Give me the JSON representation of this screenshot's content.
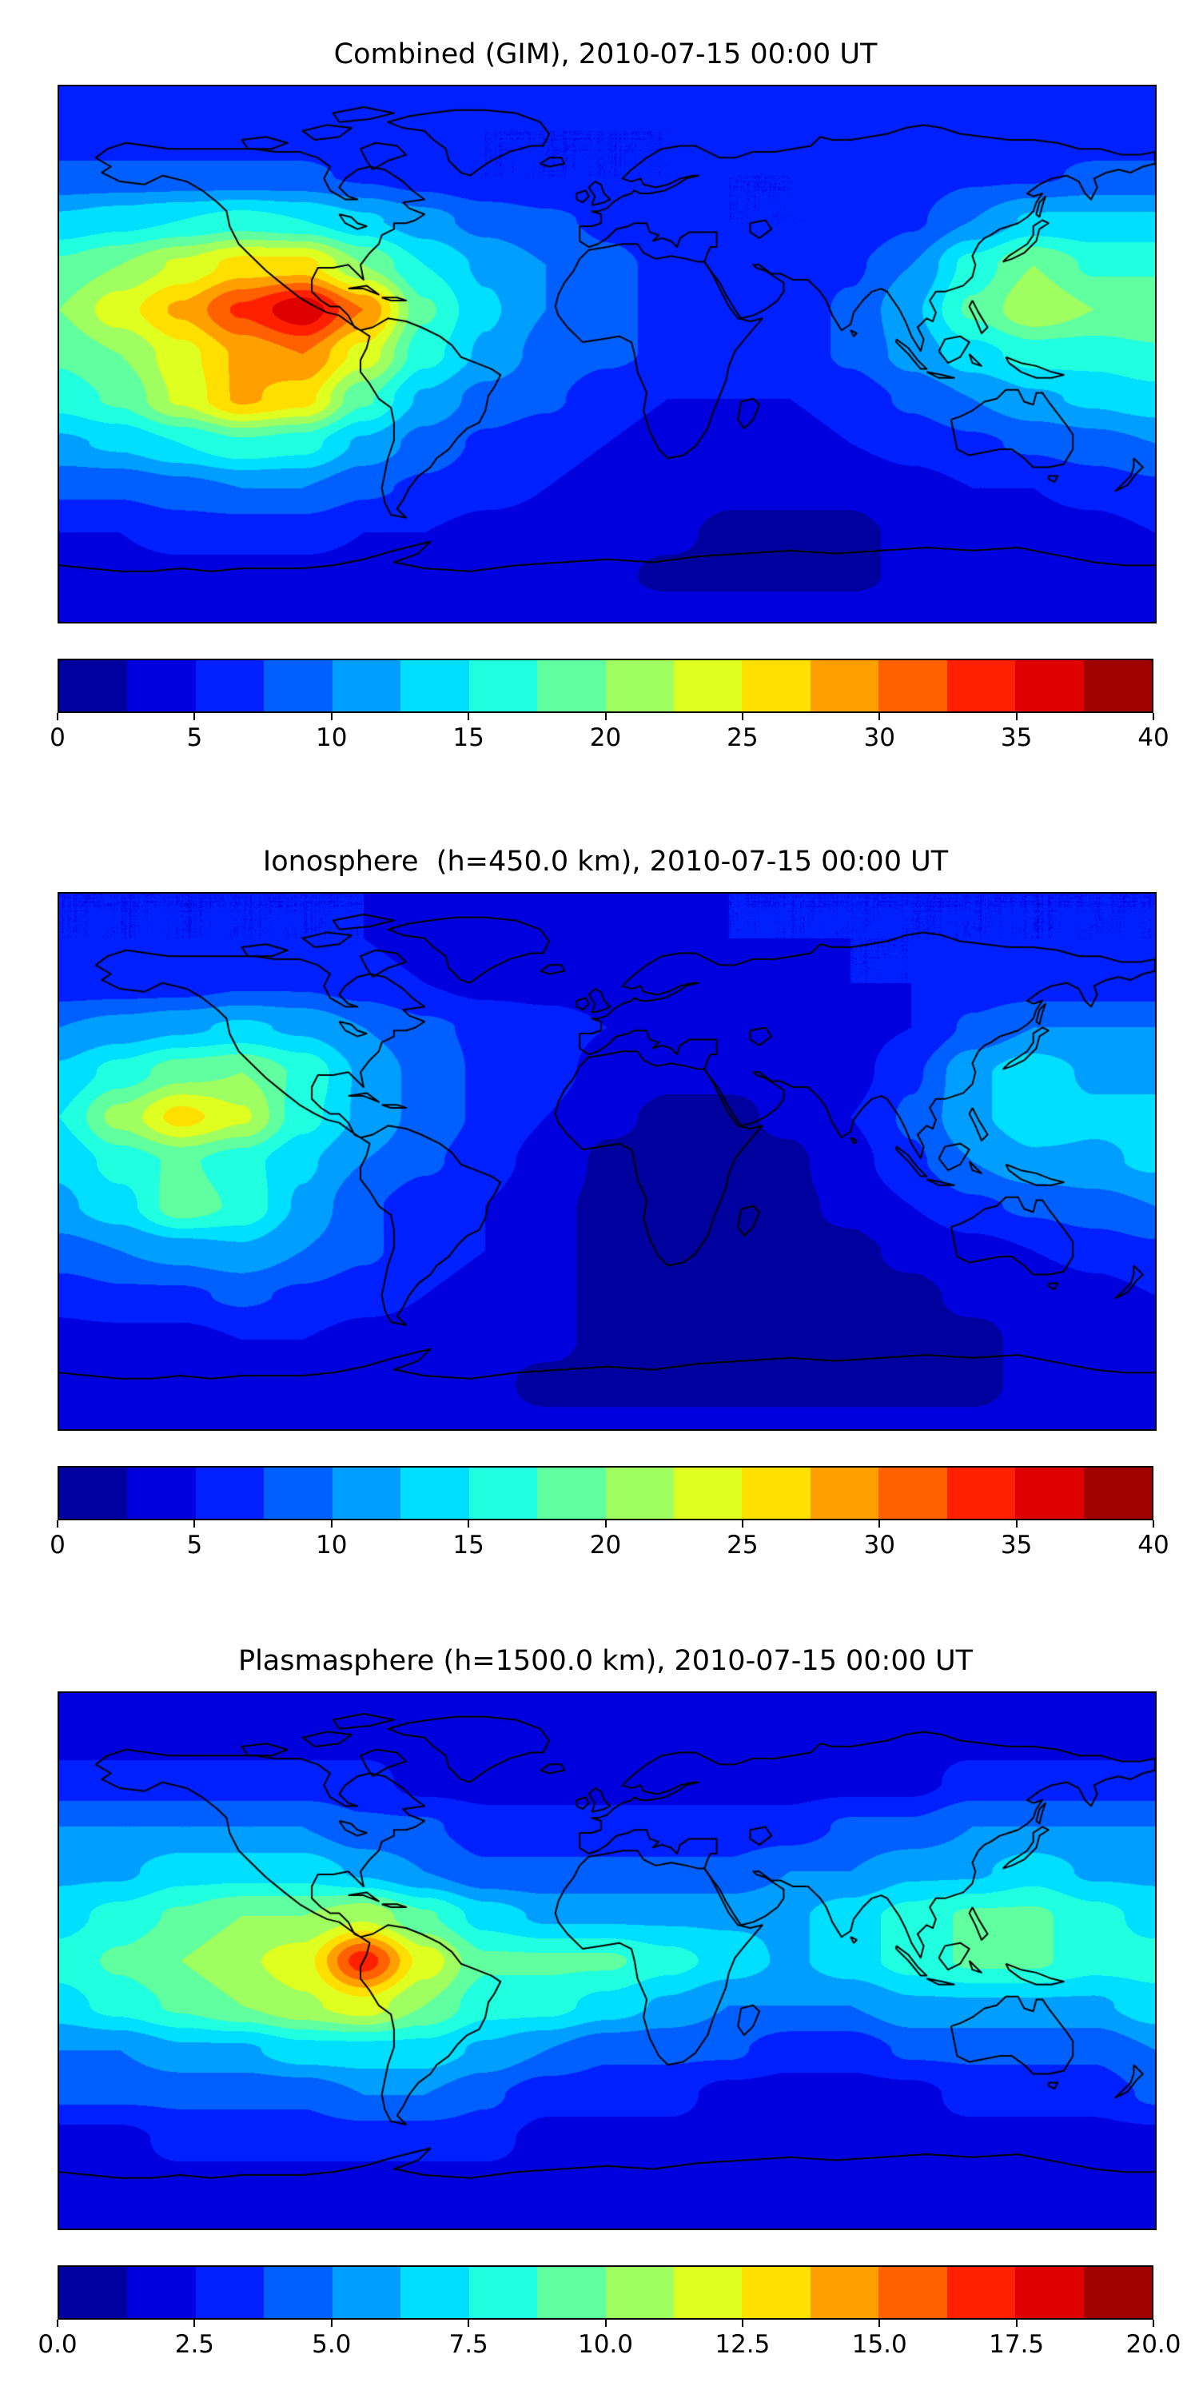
{
  "chart_data": [
    {
      "type": "heatmap",
      "title": "Combined (GIM), 2010-07-15 00:00 UT",
      "projection": "equirectangular world map with coastlines",
      "colormap": "jet",
      "colorbar": {
        "min": 0,
        "max": 40,
        "bands": 16,
        "ticks": [
          "0",
          "5",
          "10",
          "15",
          "20",
          "25",
          "30",
          "35",
          "40"
        ]
      },
      "grid": {
        "lons": [
          -180,
          -160,
          -140,
          -120,
          -100,
          -80,
          -60,
          -40,
          -20,
          0,
          20,
          40,
          60,
          80,
          100,
          120,
          140,
          160,
          180
        ],
        "lats": [
          90,
          75,
          60,
          45,
          30,
          15,
          0,
          -15,
          -30,
          -45,
          -60,
          -75,
          -90
        ],
        "values": [
          [
            6,
            6,
            6,
            6,
            6,
            6,
            6,
            6,
            6,
            6,
            6,
            6,
            6,
            6,
            6,
            6,
            6,
            6,
            6
          ],
          [
            6,
            6,
            6,
            6,
            6,
            5,
            5,
            5,
            5,
            5,
            5,
            6,
            6,
            6,
            6,
            6,
            6,
            6,
            6
          ],
          [
            8,
            8,
            8,
            8,
            8,
            7,
            6,
            5,
            5,
            5,
            5,
            5,
            5,
            6,
            6,
            7,
            7,
            8,
            8
          ],
          [
            13,
            14,
            15,
            16,
            15,
            13,
            11,
            9,
            8,
            7,
            6,
            5,
            5,
            5,
            7,
            10,
            13,
            13,
            13
          ],
          [
            18,
            20,
            23,
            26,
            26,
            20,
            15,
            12,
            10,
            8,
            7,
            6,
            6,
            7,
            10,
            16,
            20,
            17,
            17
          ],
          [
            20,
            24,
            28,
            33,
            37,
            30,
            18,
            13,
            10,
            8,
            7,
            6,
            6,
            8,
            12,
            18,
            22,
            20,
            20
          ],
          [
            18,
            20,
            24,
            28,
            30,
            24,
            16,
            12,
            9,
            8,
            7,
            6,
            6,
            8,
            11,
            14,
            16,
            16,
            17
          ],
          [
            16,
            18,
            23,
            28,
            26,
            18,
            12,
            9,
            8,
            6,
            5,
            5,
            5,
            6,
            8,
            10,
            12,
            13,
            14
          ],
          [
            12,
            13,
            15,
            17,
            16,
            12,
            9,
            7,
            6,
            5,
            4,
            4,
            4,
            5,
            6,
            7,
            8,
            9,
            10
          ],
          [
            8,
            8,
            9,
            10,
            10,
            8,
            7,
            6,
            5,
            4,
            4,
            3,
            3,
            3,
            4,
            5,
            5,
            6,
            7
          ],
          [
            5,
            5,
            6,
            6,
            6,
            5,
            5,
            4,
            4,
            3,
            3,
            2,
            2,
            2,
            3,
            3,
            4,
            4,
            5
          ],
          [
            4,
            4,
            4,
            4,
            4,
            4,
            4,
            3,
            3,
            3,
            2,
            2,
            2,
            2,
            3,
            3,
            3,
            4,
            4
          ],
          [
            4,
            4,
            4,
            4,
            4,
            4,
            4,
            4,
            4,
            4,
            4,
            4,
            4,
            4,
            4,
            4,
            4,
            4,
            4
          ]
        ]
      }
    },
    {
      "type": "heatmap",
      "title": "Ionosphere  (h=450.0 km), 2010-07-15 00:00 UT",
      "projection": "equirectangular world map with coastlines",
      "colormap": "jet",
      "colorbar": {
        "min": 0,
        "max": 40,
        "bands": 16,
        "ticks": [
          "0",
          "5",
          "10",
          "15",
          "20",
          "25",
          "30",
          "35",
          "40"
        ]
      },
      "grid": {
        "lons": [
          -180,
          -160,
          -140,
          -120,
          -100,
          -80,
          -60,
          -40,
          -20,
          0,
          20,
          40,
          60,
          80,
          100,
          120,
          140,
          160,
          180
        ],
        "lats": [
          90,
          75,
          60,
          45,
          30,
          15,
          0,
          -15,
          -30,
          -45,
          -60,
          -75,
          -90
        ],
        "values": [
          [
            5,
            5,
            5,
            5,
            5,
            5,
            5,
            5,
            5,
            5,
            5,
            5,
            5,
            5,
            5,
            5,
            5,
            5,
            5
          ],
          [
            5,
            5,
            5,
            5,
            5,
            5,
            4,
            4,
            4,
            4,
            4,
            5,
            5,
            5,
            5,
            5,
            5,
            5,
            5
          ],
          [
            6,
            6,
            6,
            7,
            7,
            6,
            5,
            4,
            4,
            4,
            4,
            4,
            4,
            5,
            5,
            6,
            6,
            6,
            6
          ],
          [
            10,
            11,
            12,
            13,
            12,
            10,
            8,
            7,
            6,
            5,
            4,
            4,
            4,
            4,
            5,
            8,
            10,
            10,
            10
          ],
          [
            13,
            16,
            19,
            20,
            17,
            12,
            9,
            7,
            6,
            4,
            3,
            3,
            3,
            4,
            7,
            12,
            14,
            12,
            12
          ],
          [
            15,
            21,
            26,
            23,
            16,
            12,
            9,
            7,
            5,
            3,
            2,
            2,
            3,
            5,
            8,
            12,
            14,
            13,
            13
          ],
          [
            13,
            16,
            18,
            16,
            13,
            10,
            8,
            6,
            4,
            2,
            2,
            2,
            2,
            4,
            7,
            10,
            12,
            12,
            13
          ],
          [
            12,
            14,
            19,
            17,
            12,
            8,
            6,
            5,
            3,
            2,
            2,
            2,
            2,
            3,
            5,
            7,
            8,
            9,
            10
          ],
          [
            9,
            10,
            11,
            12,
            10,
            8,
            6,
            5,
            3,
            2,
            2,
            2,
            2,
            2,
            3,
            4,
            5,
            6,
            7
          ],
          [
            6,
            7,
            7,
            8,
            7,
            6,
            5,
            4,
            3,
            2,
            2,
            2,
            2,
            2,
            2,
            3,
            3,
            4,
            5
          ],
          [
            4,
            4,
            4,
            5,
            5,
            4,
            4,
            3,
            3,
            2,
            2,
            2,
            2,
            2,
            2,
            2,
            3,
            3,
            4
          ],
          [
            3,
            3,
            3,
            3,
            3,
            3,
            3,
            3,
            2,
            2,
            2,
            2,
            2,
            2,
            2,
            2,
            3,
            3,
            3
          ],
          [
            3,
            3,
            3,
            3,
            3,
            3,
            3,
            3,
            3,
            3,
            3,
            3,
            3,
            3,
            3,
            3,
            3,
            3,
            3
          ]
        ]
      }
    },
    {
      "type": "heatmap",
      "title": "Plasmasphere (h=1500.0 km), 2010-07-15 00:00 UT",
      "projection": "equirectangular world map with coastlines",
      "colormap": "jet",
      "colorbar": {
        "min": 0,
        "max": 20,
        "bands": 16,
        "ticks": [
          "0.0",
          "2.5",
          "5.0",
          "7.5",
          "10.0",
          "12.5",
          "15.0",
          "17.5",
          "20.0"
        ]
      },
      "grid": {
        "lons": [
          -180,
          -160,
          -140,
          -120,
          -100,
          -80,
          -60,
          -40,
          -20,
          0,
          20,
          40,
          60,
          80,
          100,
          120,
          140,
          160,
          180
        ],
        "lats": [
          90,
          75,
          60,
          45,
          30,
          15,
          0,
          -15,
          -30,
          -45,
          -60,
          -75,
          -90
        ],
        "values": [
          [
            2,
            2,
            2,
            2,
            2,
            2,
            2,
            2,
            2,
            2,
            2,
            2,
            2,
            2,
            2,
            2,
            2,
            2,
            2
          ],
          [
            2,
            2,
            2,
            2,
            2,
            2,
            2,
            2,
            2,
            2,
            2,
            2,
            2,
            2,
            2,
            2,
            2,
            2,
            2
          ],
          [
            3,
            3,
            3,
            3,
            3,
            3,
            2,
            2,
            2,
            2,
            2,
            2,
            2,
            2,
            2,
            3,
            3,
            3,
            3
          ],
          [
            5,
            5,
            5,
            5,
            5,
            4,
            4,
            3,
            3,
            3,
            3,
            3,
            3,
            4,
            4,
            5,
            5,
            5,
            5
          ],
          [
            6,
            6,
            7,
            7,
            7,
            6,
            5,
            4,
            4,
            4,
            4,
            4,
            5,
            5,
            6,
            6,
            7,
            6,
            6
          ],
          [
            7,
            8,
            9,
            10,
            10,
            11,
            9,
            7,
            6,
            6,
            6,
            6,
            6,
            7,
            8,
            9,
            9,
            8,
            7
          ],
          [
            8,
            9,
            10,
            11,
            12,
            17,
            12,
            9,
            9,
            9,
            8,
            7,
            6,
            7,
            8,
            9,
            9,
            8,
            8
          ],
          [
            7,
            8,
            9,
            10,
            11,
            12,
            10,
            8,
            8,
            7,
            6,
            5,
            5,
            5,
            6,
            6,
            6,
            6,
            7
          ],
          [
            5,
            5,
            6,
            6,
            7,
            7,
            7,
            6,
            5,
            4,
            4,
            4,
            3,
            3,
            4,
            4,
            4,
            4,
            5
          ],
          [
            4,
            4,
            4,
            4,
            4,
            5,
            5,
            4,
            3,
            3,
            3,
            2,
            2,
            2,
            2,
            3,
            3,
            3,
            4
          ],
          [
            2,
            2,
            3,
            3,
            3,
            3,
            3,
            3,
            2,
            2,
            2,
            2,
            2,
            2,
            2,
            2,
            2,
            2,
            2
          ],
          [
            2,
            2,
            2,
            2,
            2,
            2,
            2,
            2,
            2,
            2,
            2,
            2,
            2,
            2,
            2,
            2,
            2,
            2,
            2
          ],
          [
            2,
            2,
            2,
            2,
            2,
            2,
            2,
            2,
            2,
            2,
            2,
            2,
            2,
            2,
            2,
            2,
            2,
            2,
            2
          ]
        ]
      }
    }
  ]
}
